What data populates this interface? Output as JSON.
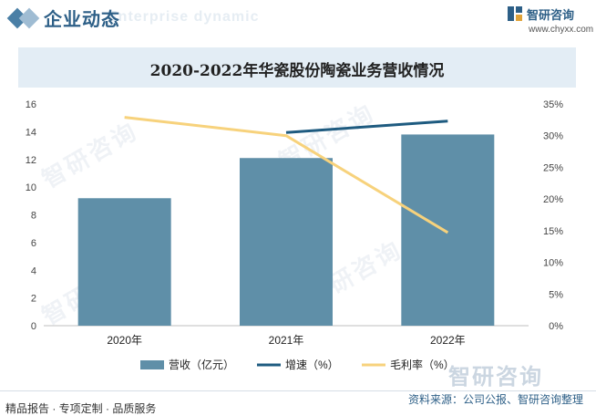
{
  "header": {
    "title": "企业动态",
    "subtitle_en": "Enterprise dynamic",
    "logo_text": "智研咨询",
    "logo_url": "www.chyxx.com"
  },
  "watermark": "智研咨询",
  "footer": {
    "left": "精品报告 · 专项定制 · 品质服务",
    "right": "资料来源：公司公报、智研咨询整理"
  },
  "colors": {
    "bar": "#5f8fa8",
    "growth_line": "#1e5b80",
    "margin_line": "#f7d27c",
    "title_band": "#e3edf5"
  },
  "chart_data": {
    "type": "bar",
    "title": "2020-2022年华瓷股份陶瓷业务营收情况",
    "categories": [
      "2020年",
      "2021年",
      "2022年"
    ],
    "series": [
      {
        "name": "营收（亿元）",
        "type": "bar",
        "axis": "left",
        "values": [
          9.2,
          12.1,
          13.8
        ]
      },
      {
        "name": "增速（%）",
        "type": "line",
        "axis": "right",
        "values": [
          null,
          30.5,
          32.3
        ]
      },
      {
        "name": "毛利率（%）",
        "type": "line",
        "axis": "right",
        "values": [
          32.9,
          30.0,
          14.7
        ]
      }
    ],
    "y_left": {
      "min": 0,
      "max": 16,
      "ticks": [
        "0",
        "2",
        "4",
        "6",
        "8",
        "10",
        "12",
        "14",
        "16"
      ]
    },
    "y_right": {
      "min": 0,
      "max": 35,
      "ticks": [
        "0%",
        "5%",
        "10%",
        "15%",
        "20%",
        "25%",
        "30%",
        "35%"
      ]
    },
    "legend": [
      "营收（亿元）",
      "增速（%）",
      "毛利率（%）"
    ],
    "legend_position": "bottom"
  }
}
